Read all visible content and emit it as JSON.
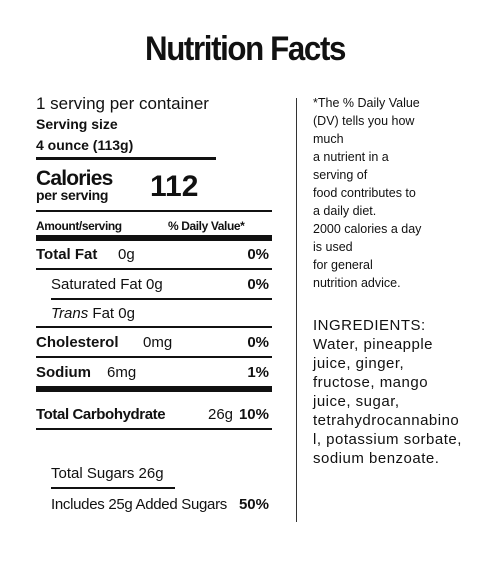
{
  "title": "Nutrition Facts",
  "serving": {
    "per_container": "1 serving per container",
    "size_label": "Serving size",
    "size_value": "4 ounce (113g)"
  },
  "calories": {
    "label": "Calories",
    "sublabel": "per serving",
    "value": "112"
  },
  "header": {
    "amount": "Amount/serving",
    "dv": "% Daily Value*"
  },
  "nutrients": {
    "total_fat": {
      "label": "Total Fat",
      "amount": "0g",
      "dv": "0%"
    },
    "sat_fat": {
      "label": "Saturated Fat 0g",
      "dv": "0%"
    },
    "trans_fat": {
      "label_italic": "Trans",
      "label_rest": " Fat 0g"
    },
    "cholesterol": {
      "label": "Cholesterol",
      "amount": "0mg",
      "dv": "0%"
    },
    "sodium": {
      "label": "Sodium",
      "amount": "6mg",
      "dv": "1%"
    },
    "total_carb": {
      "label": "Total Carbohydrate",
      "amount": "26g",
      "dv": "10%"
    },
    "total_sugars": {
      "label": "Total Sugars 26g"
    },
    "added_sugars": {
      "label": "Includes 25g Added Sugars",
      "dv": "50%"
    }
  },
  "footnote": {
    "lines": [
      "*The % Daily Value",
      "(DV) tells you how",
      "much",
      "a nutrient in a",
      "serving of",
      "food contributes to",
      "a daily diet.",
      "2000 calories a day",
      "is used",
      "for general",
      "nutrition advice."
    ]
  },
  "ingredients": {
    "lines": [
      "INGREDIENTS:",
      "Water, pineapple",
      "juice, ginger,",
      "fructose, mango",
      "juice, sugar,",
      "tetrahydrocannabino",
      "l, potassium sorbate,",
      "sodium benzoate."
    ]
  }
}
